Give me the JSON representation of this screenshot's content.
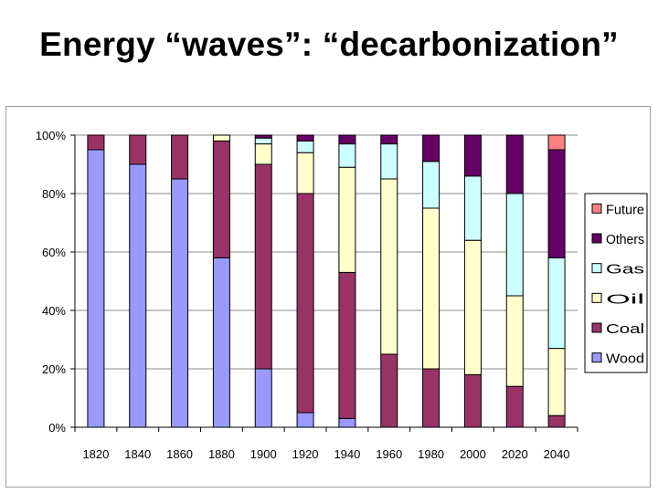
{
  "title": "Energy “waves”: “decarbonization”",
  "chart_data": {
    "type": "bar",
    "stacked": true,
    "percent": true,
    "title": "",
    "xlabel": "",
    "ylabel": "",
    "ylim": [
      0,
      100
    ],
    "y_ticks": [
      "0%",
      "20%",
      "40%",
      "60%",
      "80%",
      "100%"
    ],
    "grid": true,
    "legend_position": "right",
    "categories": [
      "1820",
      "1840",
      "1860",
      "1880",
      "1900",
      "1920",
      "1940",
      "1960",
      "1980",
      "2000",
      "2020",
      "2040"
    ],
    "series": [
      {
        "name": "Wood",
        "color": "#9999ff",
        "values": [
          95,
          90,
          85,
          58,
          20,
          5,
          3,
          0,
          0,
          0,
          0,
          0
        ]
      },
      {
        "name": "Coal",
        "color": "#993366",
        "values": [
          5,
          10,
          15,
          40,
          70,
          75,
          50,
          25,
          20,
          18,
          14,
          4
        ]
      },
      {
        "name": "Oil",
        "color": "#ffffcc",
        "values": [
          0,
          0,
          0,
          2,
          7,
          14,
          36,
          60,
          55,
          46,
          31,
          23
        ]
      },
      {
        "name": "Gas",
        "color": "#ccffff",
        "values": [
          0,
          0,
          0,
          0,
          2,
          4,
          8,
          12,
          16,
          22,
          35,
          31
        ]
      },
      {
        "name": "Others",
        "color": "#660066",
        "values": [
          0,
          0,
          0,
          0,
          1,
          2,
          3,
          3,
          9,
          14,
          20,
          37
        ]
      },
      {
        "name": "Future",
        "color": "#ff8080",
        "values": [
          0,
          0,
          0,
          0,
          0,
          0,
          0,
          0,
          0,
          0,
          0,
          5
        ]
      }
    ],
    "legend_order": [
      "Future",
      "Others",
      "Gas",
      "Oil",
      "Coal",
      "Wood"
    ]
  }
}
